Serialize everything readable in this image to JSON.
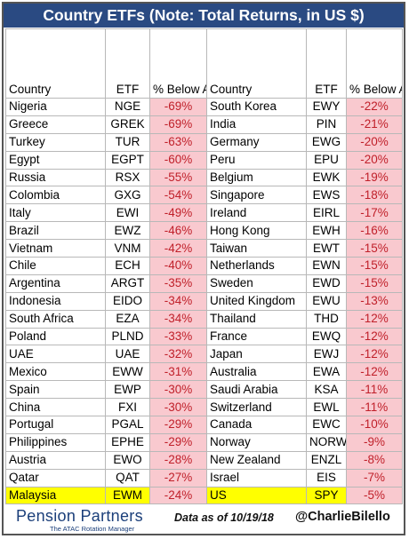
{
  "title": "Country ETFs (Note: Total Returns, in US $)",
  "headers": {
    "country": "Country",
    "etf": "ETF",
    "pct": "% Below All-Time High Close"
  },
  "left": [
    {
      "country": "Nigeria",
      "etf": "NGE",
      "pct": "-69%"
    },
    {
      "country": "Greece",
      "etf": "GREK",
      "pct": "-69%"
    },
    {
      "country": "Turkey",
      "etf": "TUR",
      "pct": "-63%"
    },
    {
      "country": "Egypt",
      "etf": "EGPT",
      "pct": "-60%"
    },
    {
      "country": "Russia",
      "etf": "RSX",
      "pct": "-55%"
    },
    {
      "country": "Colombia",
      "etf": "GXG",
      "pct": "-54%"
    },
    {
      "country": "Italy",
      "etf": "EWI",
      "pct": "-49%"
    },
    {
      "country": "Brazil",
      "etf": "EWZ",
      "pct": "-46%"
    },
    {
      "country": "Vietnam",
      "etf": "VNM",
      "pct": "-42%"
    },
    {
      "country": "Chile",
      "etf": "ECH",
      "pct": "-40%"
    },
    {
      "country": "Argentina",
      "etf": "ARGT",
      "pct": "-35%"
    },
    {
      "country": "Indonesia",
      "etf": "EIDO",
      "pct": "-34%"
    },
    {
      "country": "South Africa",
      "etf": "EZA",
      "pct": "-34%"
    },
    {
      "country": "Poland",
      "etf": "PLND",
      "pct": "-33%"
    },
    {
      "country": "UAE",
      "etf": "UAE",
      "pct": "-32%"
    },
    {
      "country": "Mexico",
      "etf": "EWW",
      "pct": "-31%"
    },
    {
      "country": "Spain",
      "etf": "EWP",
      "pct": "-30%"
    },
    {
      "country": "China",
      "etf": "FXI",
      "pct": "-30%"
    },
    {
      "country": "Portugal",
      "etf": "PGAL",
      "pct": "-29%"
    },
    {
      "country": "Philippines",
      "etf": "EPHE",
      "pct": "-29%"
    },
    {
      "country": "Austria",
      "etf": "EWO",
      "pct": "-28%"
    },
    {
      "country": "Qatar",
      "etf": "QAT",
      "pct": "-27%"
    },
    {
      "country": "Malaysia",
      "etf": "EWM",
      "pct": "-24%"
    }
  ],
  "right": [
    {
      "country": "South Korea",
      "etf": "EWY",
      "pct": "-22%"
    },
    {
      "country": "India",
      "etf": "PIN",
      "pct": "-21%"
    },
    {
      "country": "Germany",
      "etf": "EWG",
      "pct": "-20%"
    },
    {
      "country": "Peru",
      "etf": "EPU",
      "pct": "-20%"
    },
    {
      "country": "Belgium",
      "etf": "EWK",
      "pct": "-19%"
    },
    {
      "country": "Singapore",
      "etf": "EWS",
      "pct": "-18%"
    },
    {
      "country": "Ireland",
      "etf": "EIRL",
      "pct": "-17%"
    },
    {
      "country": "Hong Kong",
      "etf": "EWH",
      "pct": "-16%"
    },
    {
      "country": "Taiwan",
      "etf": "EWT",
      "pct": "-15%"
    },
    {
      "country": "Netherlands",
      "etf": "EWN",
      "pct": "-15%"
    },
    {
      "country": "Sweden",
      "etf": "EWD",
      "pct": "-15%"
    },
    {
      "country": "United Kingdom",
      "etf": "EWU",
      "pct": "-13%"
    },
    {
      "country": "Thailand",
      "etf": "THD",
      "pct": "-12%"
    },
    {
      "country": "France",
      "etf": "EWQ",
      "pct": "-12%"
    },
    {
      "country": "Japan",
      "etf": "EWJ",
      "pct": "-12%"
    },
    {
      "country": "Australia",
      "etf": "EWA",
      "pct": "-12%"
    },
    {
      "country": "Saudi Arabia",
      "etf": "KSA",
      "pct": "-11%"
    },
    {
      "country": "Switzerland",
      "etf": "EWL",
      "pct": "-11%"
    },
    {
      "country": "Canada",
      "etf": "EWC",
      "pct": "-10%"
    },
    {
      "country": "Norway",
      "etf": "NORW",
      "pct": "-9%"
    },
    {
      "country": "New Zealand",
      "etf": "ENZL",
      "pct": "-8%"
    },
    {
      "country": "Israel",
      "etf": "EIS",
      "pct": "-7%"
    },
    {
      "country": "US",
      "etf": "SPY",
      "pct": "-5%",
      "highlight": true
    }
  ],
  "footer": {
    "logo": "Pension Partners",
    "logo_sub": "The ATAC Rotation Manager",
    "as_of": "Data as of 10/19/18",
    "handle": "@CharlieBilello"
  },
  "colors": {
    "title_bg": "#2a4a82",
    "pct_bg": "#f9c9cf",
    "pct_text": "#c0202a",
    "highlight": "#ffff00"
  }
}
